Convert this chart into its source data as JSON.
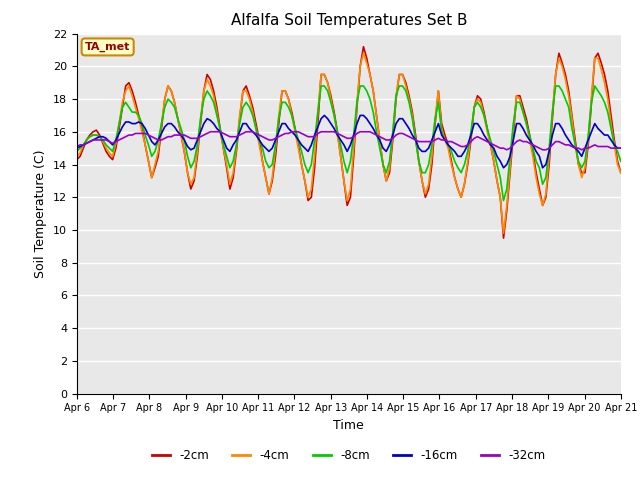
{
  "title": "Alfalfa Soil Temperatures Set B",
  "xlabel": "Time",
  "ylabel": "Soil Temperature (C)",
  "ylim": [
    0,
    22
  ],
  "yticks": [
    0,
    2,
    4,
    6,
    8,
    10,
    12,
    14,
    16,
    18,
    20,
    22
  ],
  "figure_bg": "#ffffff",
  "plot_bg": "#e8e8e8",
  "annotation_label": "TA_met",
  "annotation_bg": "#ffffcc",
  "annotation_border": "#cc8800",
  "annotation_text_color": "#990000",
  "x_tick_labels": [
    "Apr 6",
    "Apr 7",
    "Apr 8",
    "Apr 9",
    "Apr 10",
    "Apr 11",
    "Apr 12",
    "Apr 13",
    "Apr 14",
    "Apr 15",
    "Apr 16",
    "Apr 17",
    "Apr 18",
    "Apr 19",
    "Apr 20",
    "Apr 21"
  ],
  "series": [
    {
      "label": "-2cm",
      "color": "#cc0000",
      "linewidth": 1.2,
      "data": [
        14.3,
        14.5,
        15.0,
        15.5,
        15.8,
        16.0,
        16.1,
        15.8,
        15.3,
        14.8,
        14.5,
        14.3,
        15.0,
        16.2,
        17.5,
        18.8,
        19.0,
        18.5,
        17.8,
        17.0,
        16.2,
        15.2,
        14.2,
        13.2,
        13.8,
        14.5,
        16.2,
        18.0,
        18.8,
        18.5,
        17.8,
        16.8,
        15.8,
        14.8,
        13.5,
        12.5,
        13.0,
        14.5,
        16.5,
        18.5,
        19.5,
        19.2,
        18.5,
        17.5,
        16.2,
        15.0,
        13.8,
        12.5,
        13.2,
        14.8,
        16.8,
        18.5,
        18.8,
        18.2,
        17.5,
        16.5,
        15.5,
        14.2,
        13.2,
        12.2,
        13.0,
        14.5,
        16.5,
        18.5,
        18.5,
        18.0,
        17.2,
        16.2,
        15.2,
        14.0,
        13.0,
        11.8,
        12.0,
        13.8,
        16.5,
        19.5,
        19.5,
        19.0,
        18.2,
        17.2,
        16.0,
        14.5,
        13.0,
        11.5,
        12.0,
        14.5,
        17.5,
        20.0,
        21.2,
        20.5,
        19.5,
        18.5,
        17.0,
        15.5,
        14.0,
        13.0,
        13.5,
        15.5,
        18.0,
        19.5,
        19.5,
        19.0,
        18.2,
        17.2,
        15.8,
        14.2,
        13.0,
        12.0,
        12.5,
        14.0,
        16.5,
        18.5,
        16.5,
        15.8,
        15.2,
        14.2,
        13.2,
        12.5,
        12.0,
        12.8,
        14.0,
        15.5,
        17.5,
        18.2,
        18.0,
        17.2,
        16.2,
        15.2,
        14.2,
        13.0,
        12.0,
        9.5,
        11.2,
        13.5,
        15.8,
        18.2,
        18.2,
        17.5,
        16.8,
        15.8,
        14.8,
        13.5,
        12.5,
        11.5,
        12.0,
        14.0,
        16.8,
        19.5,
        20.8,
        20.2,
        19.5,
        18.5,
        17.0,
        15.5,
        14.0,
        13.5,
        13.5,
        15.2,
        17.8,
        20.5,
        20.8,
        20.2,
        19.5,
        18.5,
        17.0,
        15.5,
        14.2,
        13.5
      ]
    },
    {
      "label": "-4cm",
      "color": "#ff8800",
      "linewidth": 1.2,
      "data": [
        14.5,
        14.7,
        15.2,
        15.5,
        15.7,
        15.8,
        15.8,
        15.7,
        15.4,
        15.0,
        14.7,
        14.5,
        15.3,
        16.5,
        17.8,
        18.5,
        18.8,
        18.2,
        17.5,
        16.8,
        16.0,
        15.2,
        14.2,
        13.2,
        14.0,
        14.8,
        16.5,
        18.0,
        18.8,
        18.5,
        17.8,
        16.8,
        15.8,
        14.8,
        13.5,
        12.8,
        13.2,
        14.8,
        16.8,
        18.5,
        19.2,
        18.8,
        18.2,
        17.2,
        16.0,
        15.0,
        14.0,
        12.8,
        13.5,
        15.0,
        17.0,
        18.5,
        18.5,
        18.0,
        17.2,
        16.2,
        15.2,
        14.2,
        13.2,
        12.2,
        13.2,
        15.0,
        17.0,
        18.5,
        18.5,
        18.0,
        17.0,
        16.0,
        15.0,
        14.0,
        13.0,
        12.0,
        12.5,
        14.5,
        17.2,
        19.5,
        19.5,
        19.0,
        18.0,
        17.0,
        15.8,
        14.5,
        13.0,
        11.8,
        12.5,
        15.0,
        17.8,
        20.0,
        20.8,
        20.2,
        19.5,
        18.5,
        17.0,
        15.5,
        14.0,
        13.0,
        13.8,
        15.8,
        18.2,
        19.5,
        19.5,
        18.8,
        18.0,
        17.0,
        15.5,
        14.2,
        13.0,
        12.2,
        12.8,
        14.5,
        16.8,
        18.5,
        16.2,
        15.5,
        15.0,
        14.0,
        13.2,
        12.5,
        12.0,
        12.8,
        14.2,
        15.8,
        17.5,
        18.0,
        17.8,
        17.0,
        16.0,
        15.2,
        14.2,
        13.0,
        12.0,
        9.8,
        11.5,
        13.8,
        16.2,
        18.2,
        18.0,
        17.2,
        16.5,
        15.5,
        14.5,
        13.2,
        12.2,
        11.5,
        12.2,
        14.5,
        17.2,
        19.5,
        20.5,
        20.0,
        19.2,
        18.2,
        16.8,
        15.2,
        14.0,
        13.2,
        13.8,
        15.5,
        18.2,
        20.5,
        20.5,
        19.8,
        19.0,
        18.0,
        16.5,
        15.2,
        14.0,
        13.5
      ]
    },
    {
      "label": "-8cm",
      "color": "#00cc00",
      "linewidth": 1.2,
      "data": [
        14.8,
        15.0,
        15.2,
        15.5,
        15.7,
        15.8,
        15.8,
        15.7,
        15.5,
        15.2,
        15.0,
        14.8,
        15.5,
        16.5,
        17.5,
        17.8,
        17.5,
        17.2,
        17.2,
        17.0,
        16.5,
        15.8,
        15.2,
        14.5,
        14.8,
        15.5,
        16.5,
        17.5,
        18.0,
        17.8,
        17.5,
        16.8,
        16.2,
        15.5,
        14.5,
        13.8,
        14.2,
        15.2,
        16.8,
        18.0,
        18.5,
        18.2,
        17.8,
        17.0,
        16.2,
        15.2,
        14.5,
        13.8,
        14.2,
        15.2,
        16.5,
        17.5,
        17.8,
        17.5,
        17.0,
        16.2,
        15.5,
        15.0,
        14.2,
        13.8,
        14.0,
        15.2,
        16.8,
        17.8,
        17.8,
        17.5,
        17.0,
        16.2,
        15.5,
        14.8,
        14.0,
        13.5,
        14.0,
        15.5,
        17.2,
        18.8,
        18.8,
        18.5,
        17.8,
        17.0,
        16.0,
        15.2,
        14.2,
        13.5,
        14.2,
        15.8,
        17.8,
        18.8,
        18.8,
        18.5,
        18.0,
        17.2,
        16.0,
        15.0,
        14.0,
        13.5,
        14.2,
        16.0,
        18.2,
        18.8,
        18.8,
        18.5,
        17.8,
        16.8,
        15.5,
        14.2,
        13.5,
        13.5,
        14.0,
        15.2,
        16.8,
        17.8,
        16.0,
        15.5,
        15.2,
        14.8,
        14.2,
        13.8,
        13.5,
        14.0,
        14.8,
        16.0,
        17.5,
        17.8,
        17.5,
        17.0,
        16.2,
        15.5,
        14.8,
        14.0,
        13.2,
        11.8,
        12.5,
        14.5,
        16.5,
        17.8,
        17.8,
        17.2,
        16.5,
        15.8,
        15.0,
        14.2,
        13.8,
        12.8,
        13.2,
        15.0,
        17.2,
        18.8,
        18.8,
        18.5,
        18.0,
        17.5,
        16.2,
        15.2,
        14.2,
        13.8,
        14.2,
        15.8,
        17.8,
        18.8,
        18.5,
        18.2,
        17.8,
        17.2,
        16.2,
        15.2,
        14.8,
        14.2
      ]
    },
    {
      "label": "-16cm",
      "color": "#0000cc",
      "linewidth": 1.2,
      "data": [
        15.0,
        15.1,
        15.2,
        15.3,
        15.4,
        15.5,
        15.6,
        15.7,
        15.7,
        15.6,
        15.4,
        15.2,
        15.5,
        15.9,
        16.3,
        16.6,
        16.6,
        16.5,
        16.5,
        16.6,
        16.5,
        16.2,
        15.8,
        15.4,
        15.2,
        15.5,
        15.9,
        16.3,
        16.5,
        16.5,
        16.3,
        16.0,
        15.8,
        15.5,
        15.1,
        14.9,
        15.0,
        15.5,
        16.0,
        16.5,
        16.8,
        16.7,
        16.5,
        16.2,
        16.0,
        15.5,
        15.0,
        14.8,
        15.2,
        15.5,
        16.0,
        16.5,
        16.5,
        16.2,
        16.0,
        15.8,
        15.5,
        15.2,
        15.0,
        14.8,
        15.0,
        15.5,
        16.0,
        16.5,
        16.5,
        16.2,
        16.0,
        15.8,
        15.5,
        15.2,
        15.0,
        14.8,
        15.2,
        15.8,
        16.3,
        16.8,
        17.0,
        16.8,
        16.5,
        16.2,
        15.8,
        15.5,
        15.2,
        14.8,
        15.2,
        15.8,
        16.5,
        17.0,
        17.0,
        16.8,
        16.5,
        16.2,
        15.8,
        15.5,
        15.0,
        14.8,
        15.2,
        15.8,
        16.5,
        16.8,
        16.8,
        16.5,
        16.2,
        15.8,
        15.5,
        15.0,
        14.8,
        14.8,
        15.0,
        15.5,
        16.0,
        16.5,
        15.8,
        15.5,
        15.2,
        15.0,
        14.8,
        14.5,
        14.5,
        14.8,
        15.2,
        15.8,
        16.5,
        16.5,
        16.2,
        15.8,
        15.5,
        15.2,
        15.0,
        14.5,
        14.2,
        13.8,
        14.0,
        14.5,
        15.5,
        16.5,
        16.5,
        16.2,
        15.8,
        15.5,
        15.2,
        14.8,
        14.5,
        13.8,
        14.0,
        14.8,
        15.8,
        16.5,
        16.5,
        16.2,
        15.8,
        15.5,
        15.2,
        15.0,
        14.8,
        14.5,
        15.0,
        15.5,
        16.0,
        16.5,
        16.2,
        16.0,
        15.8,
        15.8,
        15.5,
        15.2,
        15.0,
        15.0
      ]
    },
    {
      "label": "-32cm",
      "color": "#9900cc",
      "linewidth": 1.2,
      "data": [
        15.1,
        15.2,
        15.2,
        15.3,
        15.4,
        15.5,
        15.5,
        15.5,
        15.5,
        15.5,
        15.4,
        15.3,
        15.4,
        15.5,
        15.6,
        15.7,
        15.8,
        15.8,
        15.9,
        15.9,
        15.9,
        15.9,
        15.8,
        15.7,
        15.6,
        15.5,
        15.5,
        15.6,
        15.7,
        15.7,
        15.8,
        15.8,
        15.8,
        15.8,
        15.7,
        15.6,
        15.6,
        15.6,
        15.7,
        15.8,
        15.9,
        16.0,
        16.0,
        16.0,
        16.0,
        15.9,
        15.8,
        15.7,
        15.7,
        15.7,
        15.8,
        15.9,
        16.0,
        16.0,
        16.0,
        15.9,
        15.8,
        15.7,
        15.6,
        15.5,
        15.5,
        15.6,
        15.7,
        15.8,
        15.9,
        15.9,
        16.0,
        16.0,
        16.0,
        15.9,
        15.8,
        15.7,
        15.7,
        15.7,
        15.9,
        16.0,
        16.0,
        16.0,
        16.0,
        16.0,
        15.9,
        15.8,
        15.7,
        15.6,
        15.6,
        15.7,
        15.9,
        16.0,
        16.0,
        16.0,
        16.0,
        15.9,
        15.8,
        15.7,
        15.6,
        15.5,
        15.5,
        15.6,
        15.8,
        15.9,
        15.9,
        15.8,
        15.7,
        15.6,
        15.5,
        15.4,
        15.4,
        15.4,
        15.4,
        15.4,
        15.5,
        15.6,
        15.5,
        15.5,
        15.4,
        15.4,
        15.3,
        15.2,
        15.1,
        15.1,
        15.2,
        15.4,
        15.6,
        15.7,
        15.6,
        15.5,
        15.4,
        15.3,
        15.2,
        15.1,
        15.0,
        15.0,
        14.9,
        15.0,
        15.2,
        15.4,
        15.5,
        15.4,
        15.4,
        15.3,
        15.2,
        15.1,
        15.0,
        14.9,
        14.9,
        15.0,
        15.2,
        15.4,
        15.4,
        15.3,
        15.2,
        15.2,
        15.1,
        15.0,
        15.0,
        14.9,
        15.0,
        15.0,
        15.1,
        15.2,
        15.1,
        15.1,
        15.1,
        15.1,
        15.0,
        15.0,
        15.0,
        15.0
      ]
    }
  ]
}
